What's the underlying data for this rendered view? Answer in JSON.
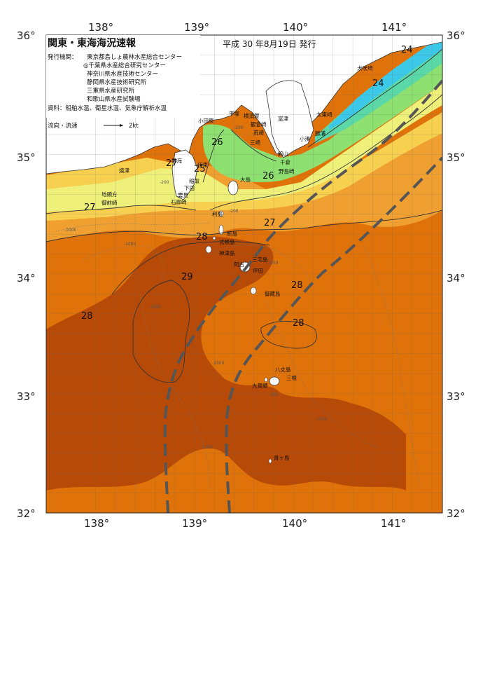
{
  "header": {
    "title": "関東・東海海況速報",
    "date": "平成  30 年8月19日  発行"
  },
  "credits": {
    "org_label": "発行機関：",
    "orgs": [
      "東京都島しょ農林水産総合センター",
      "◎千葉県水産総合研究センター",
      "神奈川県水産技術センター",
      "静岡県水産技術研究所",
      "三重県水産研究所",
      "和歌山県水産試験場"
    ],
    "source": "資料：船舶水温、衛星水温、気象庁解析水温"
  },
  "legend": {
    "flow_label": "流向・流速",
    "speed_label": "2kt"
  },
  "axes": {
    "lon_labels": [
      "138°",
      "139°",
      "140°",
      "141°"
    ],
    "lat_labels": [
      "36°",
      "35°",
      "34°",
      "33°",
      "32°"
    ]
  },
  "places": [
    "小田原",
    "平塚",
    "横須賀",
    "観音崎",
    "富津",
    "三崎",
    "荒崎",
    "館山",
    "千倉",
    "野島崎",
    "小湊",
    "勝浦",
    "太東崎",
    "犬吠埼",
    "焼津",
    "地頭方",
    "御前崎",
    "下田",
    "雲見",
    "石廊崎",
    "稲取",
    "伊東",
    "熱海",
    "大島",
    "利島",
    "新島",
    "式根島",
    "神津島",
    "三宅島",
    "阿古",
    "坪田",
    "御蔵島",
    "八丈島",
    "三根",
    "大賀郷",
    "青ヶ島"
  ],
  "temperature_labels": [
    "24",
    "24",
    "25",
    "26",
    "26",
    "27",
    "27",
    "27",
    "28",
    "28",
    "28",
    "28",
    "29"
  ],
  "depth_labels": [
    "-200",
    "-200",
    "-200",
    "-1000",
    "-1000",
    "-1000",
    "-1000",
    "-1000",
    "-1000",
    "-1000",
    "-200"
  ],
  "colors": {
    "t29": "#b84a08",
    "t28": "#e0720a",
    "t27": "#f0a030",
    "t26": "#f7d050",
    "t25": "#eef07a",
    "t24": "#8ee070",
    "t23": "#5ad8a8",
    "t22": "#3cc8e8",
    "land": "#ffffff",
    "kuroshio": "#555555"
  }
}
